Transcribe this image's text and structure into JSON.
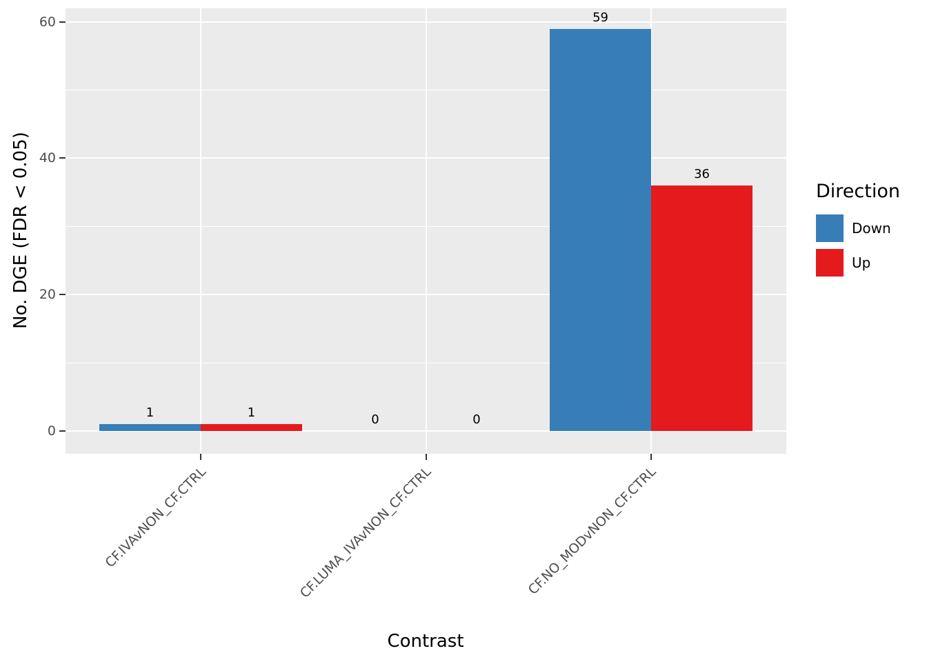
{
  "chart_data": {
    "type": "bar",
    "title": "",
    "xlabel": "Contrast",
    "ylabel": "No. DGE (FDR < 0.05)",
    "legend_title": "Direction",
    "legend_position": "right",
    "categories": [
      "CF.IVAvNON_CF.CTRL",
      "CF.LUMA_IVAvNON_CF.CTRL",
      "CF.NO_MODvNON_CF.CTRL"
    ],
    "series": [
      {
        "name": "Down",
        "color": "#377EB8",
        "values": [
          1,
          0,
          59
        ]
      },
      {
        "name": "Up",
        "color": "#E41A1C",
        "values": [
          1,
          0,
          36
        ]
      }
    ],
    "y_ticks": [
      0,
      20,
      40,
      60
    ],
    "y_minor_ticks": [
      10,
      30,
      50
    ],
    "ylim": [
      0,
      62
    ],
    "grid": true,
    "panel_background": "#EBEBEB",
    "gridline_color": "#FFFFFF",
    "tick_label_color": "#4D4D4D",
    "axis_title_color": "#000000"
  }
}
